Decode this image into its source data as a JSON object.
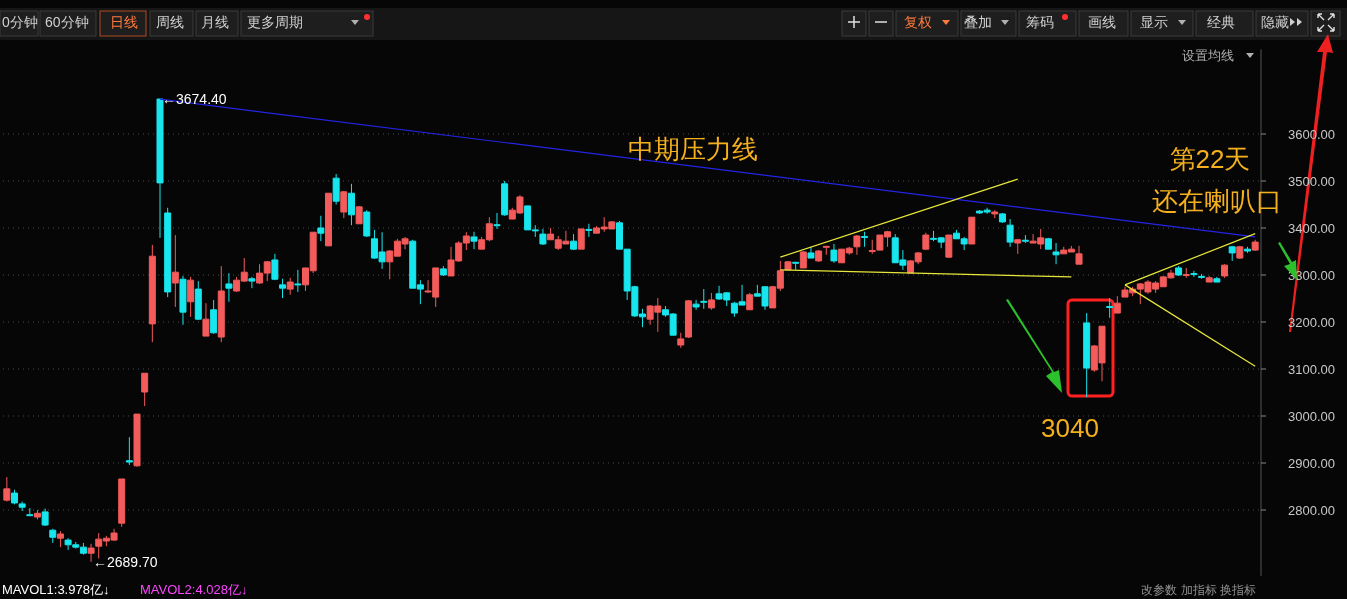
{
  "chart_data": {
    "type": "candlestick",
    "categories": [
      null,
      null,
      null,
      null,
      null,
      null,
      null,
      null,
      null,
      null,
      null,
      null,
      null,
      null,
      null,
      null,
      null,
      null,
      null,
      null,
      null,
      null,
      null,
      null,
      null,
      null,
      null,
      null,
      null,
      null,
      null,
      null,
      null,
      null,
      null,
      null,
      null,
      null,
      null,
      null,
      null,
      null,
      null,
      null,
      null,
      null,
      null,
      null,
      null,
      null,
      null,
      null,
      null,
      null,
      null,
      null,
      null,
      null,
      null,
      null,
      null,
      null,
      null,
      null,
      null,
      null,
      null,
      null,
      null,
      null,
      null,
      null,
      null,
      null,
      null,
      null,
      null,
      null,
      null,
      null,
      null,
      null,
      null,
      null,
      null,
      null,
      null,
      null,
      null,
      null,
      null,
      null,
      null,
      null,
      null,
      null,
      null,
      null,
      null,
      null,
      null,
      null,
      null,
      null,
      null,
      null,
      null,
      null,
      null,
      null,
      null,
      null,
      null,
      null,
      null,
      null,
      null,
      null,
      null,
      null,
      null,
      null,
      null,
      null,
      null,
      null,
      null,
      null,
      null,
      null,
      null,
      null,
      null,
      null,
      null,
      null,
      null,
      null,
      null,
      null,
      null,
      null,
      null,
      null,
      null,
      null,
      null,
      null,
      null,
      null,
      null,
      null,
      null,
      null,
      null,
      null,
      null,
      null,
      null,
      null,
      null,
      null,
      null,
      null
    ],
    "ohlc": [
      [
        2821,
        2870,
        2818,
        2845
      ],
      [
        2836,
        2843,
        2812,
        2815
      ],
      [
        2813,
        2818,
        2798,
        2806
      ],
      [
        2790,
        2804,
        2787,
        2788
      ],
      [
        2785,
        2800,
        2780,
        2793
      ],
      [
        2796,
        2803,
        2766,
        2768
      ],
      [
        2757,
        2760,
        2730,
        2742
      ],
      [
        2740,
        2755,
        2721,
        2749
      ],
      [
        2736,
        2740,
        2715,
        2726
      ],
      [
        2726,
        2732,
        2718,
        2721
      ],
      [
        2721,
        2730,
        2705,
        2708
      ],
      [
        2708,
        2728,
        2689.7,
        2719
      ],
      [
        2723,
        2751,
        2697,
        2738
      ],
      [
        2734,
        2745,
        2723,
        2740
      ],
      [
        2736,
        2760,
        2734,
        2751
      ],
      [
        2772,
        2866,
        2764,
        2866
      ],
      [
        2905,
        2955,
        2896,
        2902
      ],
      [
        2894,
        3004,
        2892,
        3004
      ],
      [
        3051,
        3091,
        3021,
        3091
      ],
      [
        3196,
        3364,
        3157,
        3340
      ],
      [
        3674.4,
        3674.4,
        3379,
        3496
      ],
      [
        3432,
        3443,
        3253,
        3264
      ],
      [
        3283,
        3385,
        3232,
        3306
      ],
      [
        3291,
        3298,
        3194,
        3221
      ],
      [
        3243,
        3296,
        3211,
        3289
      ],
      [
        3270,
        3287,
        3204,
        3206
      ],
      [
        3170,
        3240,
        3170,
        3206
      ],
      [
        3226,
        3247,
        3175,
        3177
      ],
      [
        3168,
        3319,
        3157,
        3266
      ],
      [
        3281,
        3304,
        3243,
        3272
      ],
      [
        3266,
        3296,
        3264,
        3289
      ],
      [
        3287,
        3336,
        3285,
        3306
      ],
      [
        3292,
        3296,
        3272,
        3287
      ],
      [
        3283,
        3323,
        3281,
        3304
      ],
      [
        3304,
        3330,
        3287,
        3328
      ],
      [
        3332,
        3345,
        3289,
        3291
      ],
      [
        3279,
        3292,
        3251,
        3272
      ],
      [
        3270,
        3294,
        3258,
        3285
      ],
      [
        3281,
        3311,
        3264,
        3279
      ],
      [
        3279,
        3315,
        3266,
        3315
      ],
      [
        3309,
        3391,
        3304,
        3391
      ],
      [
        3400,
        3426,
        3372,
        3389
      ],
      [
        3362,
        3474,
        3362,
        3474
      ],
      [
        3506,
        3515,
        3450,
        3457
      ],
      [
        3434,
        3479,
        3421,
        3477
      ],
      [
        3474,
        3494,
        3406,
        3428
      ],
      [
        3409,
        3447,
        3409,
        3445
      ],
      [
        3434,
        3438,
        3381,
        3383
      ],
      [
        3377,
        3396,
        3334,
        3336
      ],
      [
        3349,
        3391,
        3313,
        3328
      ],
      [
        3328,
        3353,
        3291,
        3351
      ],
      [
        3340,
        3377,
        3340,
        3372
      ],
      [
        3366,
        3381,
        3355,
        3377
      ],
      [
        3372,
        3375,
        3272,
        3272
      ],
      [
        3279,
        3289,
        3238,
        3270
      ],
      [
        3264,
        3289,
        3262,
        3266
      ],
      [
        3253,
        3315,
        3232,
        3315
      ],
      [
        3313,
        3319,
        3298,
        3300
      ],
      [
        3298,
        3360,
        3298,
        3332
      ],
      [
        3330,
        3372,
        3328,
        3368
      ],
      [
        3368,
        3391,
        3353,
        3383
      ],
      [
        3381,
        3392,
        3355,
        3372
      ],
      [
        3355,
        3381,
        3355,
        3375
      ],
      [
        3375,
        3423,
        3372,
        3409
      ],
      [
        3407,
        3432,
        3398,
        3405
      ],
      [
        3494,
        3500,
        3426,
        3428
      ],
      [
        3419,
        3443,
        3419,
        3438
      ],
      [
        3432,
        3470,
        3430,
        3466
      ],
      [
        3447,
        3447,
        3396,
        3396
      ],
      [
        3396,
        3406,
        3381,
        3394
      ],
      [
        3387,
        3398,
        3364,
        3366
      ],
      [
        3375,
        3400,
        3375,
        3387
      ],
      [
        3357,
        3383,
        3353,
        3375
      ],
      [
        3366,
        3394,
        3366,
        3372
      ],
      [
        3372,
        3387,
        3353,
        3355
      ],
      [
        3355,
        3398,
        3355,
        3398
      ],
      [
        3397,
        3409,
        3381,
        3395
      ],
      [
        3389,
        3404,
        3389,
        3400
      ],
      [
        3398,
        3423,
        3392,
        3402
      ],
      [
        3398,
        3415,
        3398,
        3413
      ],
      [
        3411,
        3415,
        3355,
        3355
      ],
      [
        3355,
        3355,
        3247,
        3266
      ],
      [
        3275,
        3277,
        3211,
        3213
      ],
      [
        3217,
        3228,
        3189,
        3211
      ],
      [
        3206,
        3236,
        3194,
        3234
      ],
      [
        3221,
        3251,
        3179,
        3234
      ],
      [
        3226,
        3234,
        3211,
        3215
      ],
      [
        3217,
        3219,
        3172,
        3172
      ],
      [
        3151,
        3177,
        3145,
        3164
      ],
      [
        3168,
        3247,
        3166,
        3245
      ],
      [
        3238,
        3247,
        3226,
        3232
      ],
      [
        3244,
        3270,
        3228,
        3242
      ],
      [
        3230,
        3262,
        3226,
        3247
      ],
      [
        3260,
        3277,
        3247,
        3249
      ],
      [
        3262,
        3264,
        3234,
        3247
      ],
      [
        3240,
        3243,
        3211,
        3219
      ],
      [
        3243,
        3279,
        3236,
        3236
      ],
      [
        3226,
        3262,
        3226,
        3258
      ],
      [
        3260,
        3279,
        3255,
        3255
      ],
      [
        3275,
        3275,
        3226,
        3234
      ],
      [
        3230,
        3277,
        3230,
        3275
      ],
      [
        3272,
        3330,
        3266,
        3309
      ],
      [
        3311,
        3330,
        3311,
        3328
      ],
      [
        3327,
        3328,
        3311,
        3325
      ],
      [
        3315,
        3351,
        3315,
        3349
      ],
      [
        3347,
        3360,
        3336,
        3336
      ],
      [
        3330,
        3353,
        3328,
        3351
      ],
      [
        3359,
        3362,
        3343,
        3361
      ],
      [
        3353,
        3366,
        3326,
        3330
      ],
      [
        3326,
        3355,
        3326,
        3355
      ],
      [
        3347,
        3360,
        3343,
        3357
      ],
      [
        3360,
        3385,
        3343,
        3383
      ],
      [
        3382,
        3392,
        3360,
        3380
      ],
      [
        3350,
        3375,
        3345,
        3352
      ],
      [
        3353,
        3385,
        3353,
        3385
      ],
      [
        3381,
        3394,
        3360,
        3392
      ],
      [
        3379,
        3387,
        3326,
        3326
      ],
      [
        3332,
        3353,
        3311,
        3321
      ],
      [
        3304,
        3332,
        3304,
        3330
      ],
      [
        3328,
        3349,
        3323,
        3347
      ],
      [
        3355,
        3390,
        3353,
        3385
      ],
      [
        3378,
        3394,
        3372,
        3376
      ],
      [
        3379,
        3381,
        3357,
        3370
      ],
      [
        3338,
        3385,
        3336,
        3385
      ],
      [
        3389,
        3396,
        3377,
        3377
      ],
      [
        3377,
        3381,
        3353,
        3366
      ],
      [
        3366,
        3423,
        3366,
        3423
      ],
      [
        3436,
        3438,
        3430,
        3432
      ],
      [
        3438,
        3443,
        3430,
        3434
      ],
      [
        3430,
        3438,
        3421,
        3434
      ],
      [
        3430,
        3432,
        3411,
        3413
      ],
      [
        3406,
        3419,
        3360,
        3370
      ],
      [
        3368,
        3377,
        3345,
        3375
      ],
      [
        3374,
        3385,
        3368,
        3372
      ],
      [
        3368,
        3387,
        3368,
        3372
      ],
      [
        3366,
        3398,
        3355,
        3379
      ],
      [
        3377,
        3379,
        3355,
        3355
      ],
      [
        3349,
        3368,
        3323,
        3343
      ],
      [
        3345,
        3360,
        3345,
        3353
      ],
      [
        3349,
        3362,
        3349,
        3355
      ],
      [
        3323,
        3362,
        3323,
        3345
      ],
      [
        3198,
        3219,
        3040,
        3102
      ],
      [
        3098,
        3151,
        3094,
        3149
      ],
      [
        3113,
        3191,
        3074,
        3191
      ],
      [
        3233,
        3251,
        3209,
        3231
      ],
      [
        3219,
        3255,
        3219,
        3240
      ],
      [
        3253,
        3275,
        3253,
        3268
      ],
      [
        3262,
        3275,
        3255,
        3270
      ],
      [
        3270,
        3283,
        3238,
        3281
      ],
      [
        3264,
        3289,
        3260,
        3285
      ],
      [
        3270,
        3287,
        3262,
        3283
      ],
      [
        3275,
        3298,
        3275,
        3296
      ],
      [
        3294,
        3311,
        3292,
        3304
      ],
      [
        3315,
        3319,
        3298,
        3300
      ],
      [
        3299,
        3315,
        3294,
        3301
      ],
      [
        3303,
        3309,
        3296,
        3301
      ],
      [
        3297,
        3302,
        3292,
        3295
      ],
      [
        3285,
        3298,
        3285,
        3294
      ],
      [
        3292,
        3296,
        3285,
        3285
      ],
      [
        3298,
        3323,
        3294,
        3321
      ],
      [
        3360,
        3362,
        3330,
        3347
      ],
      [
        3336,
        3362,
        3334,
        3360
      ],
      [
        3355,
        3360,
        3347,
        3351
      ],
      [
        3353,
        3375,
        3351,
        3370
      ]
    ],
    "series": [
      {
        "type": "line",
        "color": "#2424e8",
        "values": [
          null,
          null,
          null,
          null,
          null,
          null,
          null,
          null,
          null,
          null,
          null,
          null,
          null,
          null,
          null,
          null,
          null,
          null,
          null,
          null,
          3674,
          null,
          null,
          null,
          null,
          null,
          null,
          null,
          null,
          null,
          null,
          null,
          null,
          null,
          null,
          null,
          null,
          null,
          null,
          null,
          null,
          null,
          null,
          null,
          null,
          null,
          null,
          null,
          null,
          null,
          null,
          null,
          null,
          null,
          null,
          null,
          null,
          null,
          null,
          null,
          null,
          null,
          null,
          null,
          null,
          null,
          null,
          null,
          null,
          null,
          null,
          null,
          null,
          null,
          null,
          null,
          null,
          null,
          null,
          null,
          null,
          null,
          null,
          null,
          null,
          null,
          null,
          null,
          null,
          null,
          null,
          null,
          null,
          null,
          null,
          null,
          null,
          null,
          null,
          null,
          null,
          null,
          null,
          null,
          null,
          null,
          null,
          null,
          null,
          null,
          null,
          null,
          null,
          null,
          null,
          null,
          null,
          null,
          null,
          null,
          null,
          null,
          null,
          null,
          null,
          null,
          null,
          null,
          null,
          null,
          null,
          null,
          null,
          null,
          null,
          null,
          null,
          null,
          null,
          null,
          null,
          null,
          null,
          null,
          null,
          null,
          null,
          null,
          null,
          null,
          null,
          null,
          null,
          null,
          null,
          null,
          null,
          null,
          null,
          null,
          null,
          null,
          null,
          3381
        ]
      },
      {
        "type": "line",
        "color": "#e8e83c",
        "values": [
          null,
          null,
          null,
          null,
          null,
          null,
          null,
          null,
          null,
          null,
          null,
          null,
          null,
          null,
          null,
          null,
          null,
          null,
          null,
          null,
          null,
          null,
          null,
          null,
          null,
          null,
          null,
          null,
          null,
          null,
          null,
          null,
          null,
          null,
          null,
          null,
          null,
          null,
          null,
          null,
          null,
          null,
          null,
          null,
          null,
          null,
          null,
          null,
          null,
          null,
          null,
          null,
          null,
          null,
          null,
          null,
          null,
          null,
          null,
          null,
          null,
          null,
          null,
          null,
          null,
          null,
          null,
          null,
          null,
          null,
          null,
          null,
          null,
          null,
          null,
          null,
          null,
          null,
          null,
          null,
          null,
          null,
          null,
          null,
          null,
          null,
          null,
          null,
          null,
          null,
          null,
          null,
          null,
          null,
          null,
          null,
          null,
          null,
          null,
          null,
          null,
          3338,
          null,
          null,
          null,
          null,
          null,
          null,
          null,
          null,
          null,
          null,
          null,
          null,
          null,
          null,
          null,
          null,
          null,
          null,
          null,
          null,
          null,
          null,
          null,
          null,
          null,
          null,
          null,
          null,
          null,
          null,
          3504,
          null,
          null,
          null,
          null,
          null,
          null,
          null,
          null,
          null,
          null,
          null,
          null,
          null,
          null,
          null,
          null,
          null,
          null,
          null,
          null,
          null,
          null,
          null,
          null,
          null,
          null,
          null,
          null,
          null,
          null,
          null
        ]
      },
      {
        "type": "line",
        "color": "#e8e83c",
        "values": [
          null,
          null,
          null,
          null,
          null,
          null,
          null,
          null,
          null,
          null,
          null,
          null,
          null,
          null,
          null,
          null,
          null,
          null,
          null,
          null,
          null,
          null,
          null,
          null,
          null,
          null,
          null,
          null,
          null,
          null,
          null,
          null,
          null,
          null,
          null,
          null,
          null,
          null,
          null,
          null,
          null,
          null,
          null,
          null,
          null,
          null,
          null,
          null,
          null,
          null,
          null,
          null,
          null,
          null,
          null,
          null,
          null,
          null,
          null,
          null,
          null,
          null,
          null,
          null,
          null,
          null,
          null,
          null,
          null,
          null,
          null,
          null,
          null,
          null,
          null,
          null,
          null,
          null,
          null,
          null,
          null,
          null,
          null,
          null,
          null,
          null,
          null,
          null,
          null,
          null,
          null,
          null,
          null,
          null,
          null,
          null,
          null,
          null,
          null,
          null,
          null,
          3311,
          null,
          null,
          null,
          null,
          null,
          null,
          null,
          null,
          null,
          null,
          null,
          null,
          null,
          null,
          null,
          null,
          null,
          null,
          null,
          null,
          null,
          null,
          null,
          null,
          null,
          null,
          null,
          null,
          null,
          null,
          null,
          null,
          null,
          null,
          null,
          null,
          null,
          3296,
          null,
          null,
          null,
          null,
          null,
          null,
          null,
          null,
          null,
          null,
          null,
          null,
          null,
          null,
          null,
          null,
          null,
          null,
          null,
          null,
          null,
          null,
          null,
          null
        ]
      },
      {
        "type": "line",
        "color": "#e8e83c",
        "values": [
          null,
          null,
          null,
          null,
          null,
          null,
          null,
          null,
          null,
          null,
          null,
          null,
          null,
          null,
          null,
          null,
          null,
          null,
          null,
          null,
          null,
          null,
          null,
          null,
          null,
          null,
          null,
          null,
          null,
          null,
          null,
          null,
          null,
          null,
          null,
          null,
          null,
          null,
          null,
          null,
          null,
          null,
          null,
          null,
          null,
          null,
          null,
          null,
          null,
          null,
          null,
          null,
          null,
          null,
          null,
          null,
          null,
          null,
          null,
          null,
          null,
          null,
          null,
          null,
          null,
          null,
          null,
          null,
          null,
          null,
          null,
          null,
          null,
          null,
          null,
          null,
          null,
          null,
          null,
          null,
          null,
          null,
          null,
          null,
          null,
          null,
          null,
          null,
          null,
          null,
          null,
          null,
          null,
          null,
          null,
          null,
          null,
          null,
          null,
          null,
          null,
          null,
          null,
          null,
          null,
          null,
          null,
          null,
          null,
          null,
          null,
          null,
          null,
          null,
          null,
          null,
          null,
          null,
          null,
          null,
          null,
          null,
          null,
          null,
          null,
          null,
          null,
          null,
          null,
          null,
          null,
          null,
          null,
          null,
          null,
          null,
          null,
          null,
          null,
          null,
          null,
          null,
          null,
          null,
          null,
          null,
          3279,
          null,
          null,
          null,
          null,
          null,
          null,
          null,
          null,
          null,
          null,
          null,
          null,
          null,
          null,
          null,
          null,
          3388
        ]
      },
      {
        "type": "line",
        "color": "#e8e83c",
        "values": [
          null,
          null,
          null,
          null,
          null,
          null,
          null,
          null,
          null,
          null,
          null,
          null,
          null,
          null,
          null,
          null,
          null,
          null,
          null,
          null,
          null,
          null,
          null,
          null,
          null,
          null,
          null,
          null,
          null,
          null,
          null,
          null,
          null,
          null,
          null,
          null,
          null,
          null,
          null,
          null,
          null,
          null,
          null,
          null,
          null,
          null,
          null,
          null,
          null,
          null,
          null,
          null,
          null,
          null,
          null,
          null,
          null,
          null,
          null,
          null,
          null,
          null,
          null,
          null,
          null,
          null,
          null,
          null,
          null,
          null,
          null,
          null,
          null,
          null,
          null,
          null,
          null,
          null,
          null,
          null,
          null,
          null,
          null,
          null,
          null,
          null,
          null,
          null,
          null,
          null,
          null,
          null,
          null,
          null,
          null,
          null,
          null,
          null,
          null,
          null,
          null,
          null,
          null,
          null,
          null,
          null,
          null,
          null,
          null,
          null,
          null,
          null,
          null,
          null,
          null,
          null,
          null,
          null,
          null,
          null,
          null,
          null,
          null,
          null,
          null,
          null,
          null,
          null,
          null,
          null,
          null,
          null,
          null,
          null,
          null,
          null,
          null,
          null,
          null,
          null,
          null,
          null,
          null,
          null,
          null,
          null,
          3279,
          null,
          null,
          null,
          null,
          null,
          null,
          null,
          null,
          null,
          null,
          null,
          null,
          null,
          null,
          null,
          null,
          3106
        ]
      }
    ],
    "ylim": [
      2660,
      3780
    ],
    "yticks": [
      {
        "value": 2800,
        "label": "2800.00"
      },
      {
        "value": 2900,
        "label": "2900.00"
      },
      {
        "value": 3000,
        "label": "3000.00"
      },
      {
        "value": 3100,
        "label": "3100.00"
      },
      {
        "value": 3200,
        "label": "3200.00"
      },
      {
        "value": 3300,
        "label": "3300.00"
      },
      {
        "value": 3400,
        "label": "3400.00"
      },
      {
        "value": 3500,
        "label": "3500.00"
      },
      {
        "value": 3600,
        "label": "3600.00"
      }
    ],
    "grid": "y",
    "tick_labels": "y",
    "annotations": [
      {
        "text": "←3674.40",
        "y": 3674.4
      },
      "←2689.70",
      "中期压力线",
      "第22天",
      "还在喇叭口",
      "3040",
      "0分钟",
      "60分钟",
      "日线",
      "周线",
      "月线",
      "更多周期",
      "复权",
      "叠加",
      "筹码",
      "画线",
      "显示",
      "经典",
      "隐藏",
      "设置均线",
      "MAVOL1:3.978亿↓",
      "MAVOL2:4.028亿↓",
      "改参数",
      "加指标",
      "换指标"
    ]
  }
}
